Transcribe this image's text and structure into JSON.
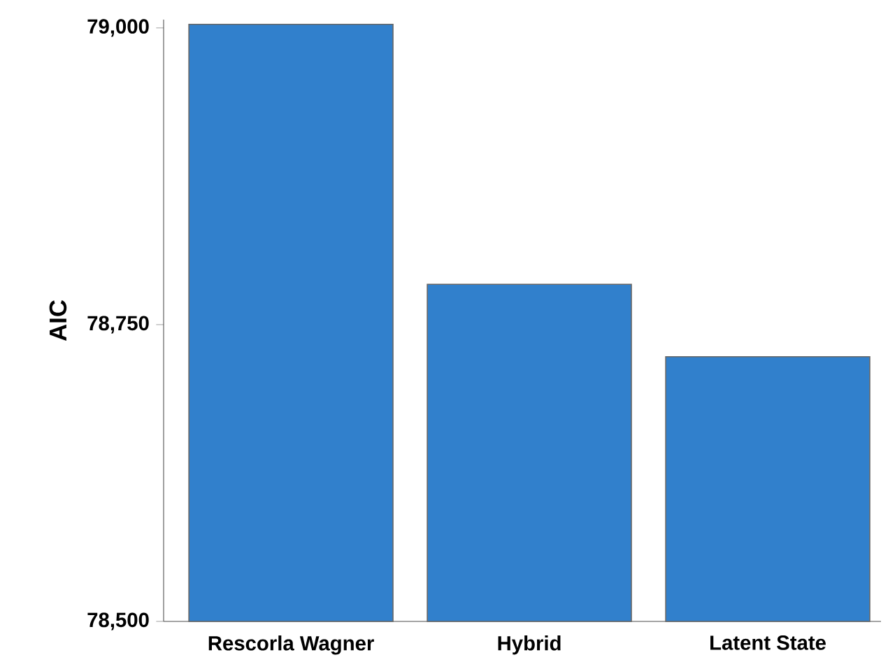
{
  "chart_data": {
    "type": "bar",
    "ylabel": "AIC",
    "categories": [
      "Rescorla Wagner",
      "Hybrid",
      "Latent State"
    ],
    "values": [
      79003,
      78784,
      78723
    ],
    "color": "#3180cc",
    "ylim": [
      78500,
      79007
    ],
    "yticks": [
      {
        "value": 78500,
        "label": "78,500"
      },
      {
        "value": 78750,
        "label": "78,750"
      },
      {
        "value": 79000,
        "label": "79,000"
      }
    ],
    "grid": false
  }
}
